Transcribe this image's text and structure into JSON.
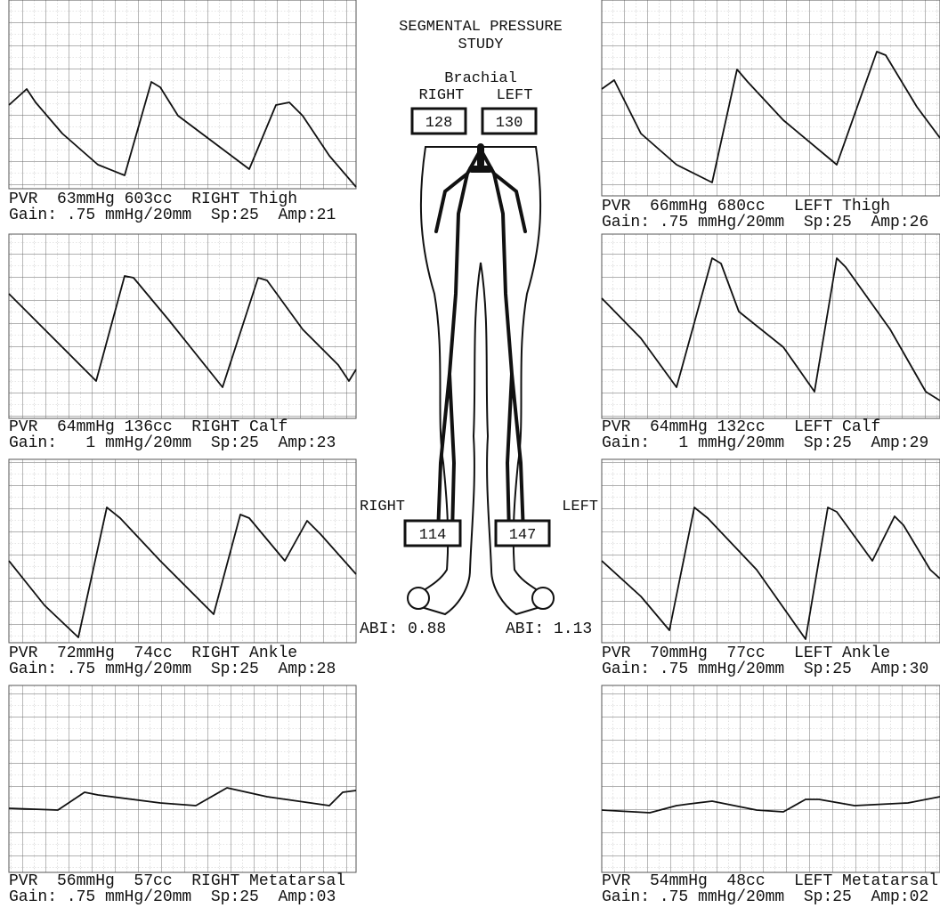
{
  "header": {
    "title_lines": [
      "SEGMENTAL PRESSURE",
      "STUDY"
    ]
  },
  "brachial": {
    "label": "Brachial",
    "right_label": "RIGHT",
    "left_label": "LEFT",
    "right_value": "128",
    "left_value": "130"
  },
  "ankle": {
    "right_label": "RIGHT",
    "left_label": "LEFT",
    "right_value": "114",
    "left_value": "147",
    "right_abi": "ABI: 0.88",
    "left_abi": "ABI: 1.13"
  },
  "right_panels": [
    {
      "line1": "PVR  63mmHg 603cc  RIGHT Thigh",
      "line2": "Gain: .75 mmHg/20mm  Sp:25  Amp:21"
    },
    {
      "line1": "PVR  64mmHg 136cc  RIGHT Calf",
      "line2": "Gain:   1 mmHg/20mm  Sp:25  Amp:23"
    },
    {
      "line1": "PVR  72mmHg  74cc  RIGHT Ankle",
      "line2": "Gain: .75 mmHg/20mm  Sp:25  Amp:28"
    },
    {
      "line1": "PVR  56mmHg  57cc  RIGHT Metatarsal",
      "line2": "Gain: .75 mmHg/20mm  Sp:25  Amp:03"
    }
  ],
  "left_panels": [
    {
      "line1": "PVR  66mmHg 680cc   LEFT Thigh",
      "line2": "Gain: .75 mmHg/20mm  Sp:25  Amp:26"
    },
    {
      "line1": "PVR  64mmHg 132cc   LEFT Calf",
      "line2": "Gain:   1 mmHg/20mm  Sp:25  Amp:29"
    },
    {
      "line1": "PVR  70mmHg  77cc   LEFT Ankle",
      "line2": "Gain: .75 mmHg/20mm  Sp:25  Amp:30"
    },
    {
      "line1": "PVR  54mmHg  48cc   LEFT Metatarsal",
      "line2": "Gain: .75 mmHg/20mm  Sp:25  Amp:02"
    }
  ]
}
